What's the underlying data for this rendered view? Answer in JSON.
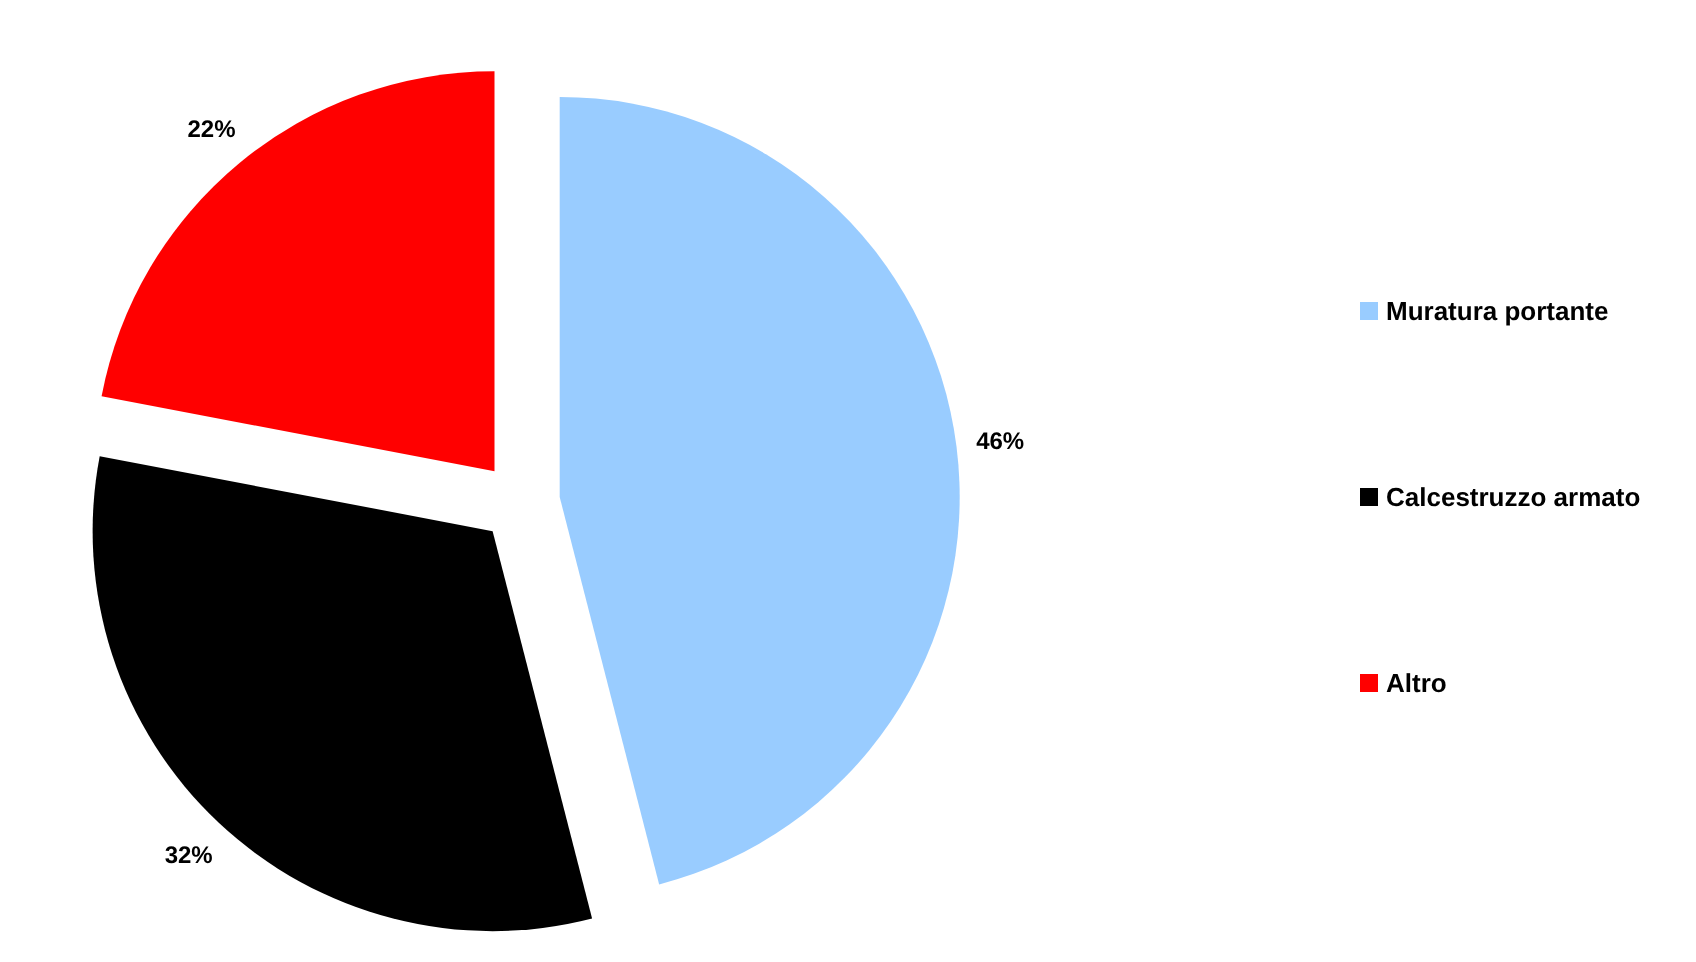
{
  "chart_data": {
    "type": "pie",
    "categories": [
      "Muratura portante",
      "Calcestruzzo armato",
      "Altro"
    ],
    "values": [
      46,
      32,
      22
    ],
    "colors": [
      "#99ccff",
      "#000000",
      "#ff0000"
    ],
    "value_labels": [
      "46%",
      "32%",
      "22%"
    ],
    "legend": "right"
  }
}
